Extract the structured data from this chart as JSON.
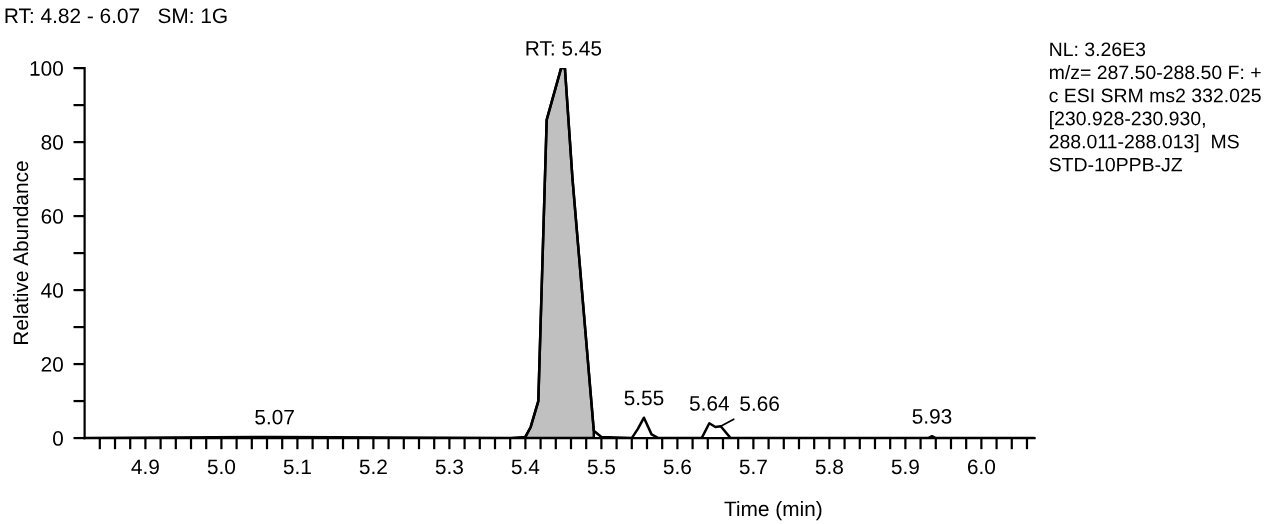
{
  "chart_data": {
    "type": "line",
    "title": "RT: 4.82 - 6.07   SM: 1G",
    "xlabel": "Time (min)",
    "ylabel": "Relative Abundance",
    "series": [
      {
        "color": "#000000",
        "x": [
          4.82,
          5.07,
          5.38,
          5.4,
          5.407,
          5.417,
          5.428,
          5.447,
          5.452,
          5.462,
          5.49,
          5.5,
          5.54,
          5.548,
          5.556,
          5.566,
          5.575,
          5.632,
          5.642,
          5.65,
          5.657,
          5.67,
          5.93,
          5.935,
          5.94,
          6.07
        ],
        "values": [
          0,
          0.3,
          0,
          0.3,
          3,
          10,
          86,
          100,
          100,
          70,
          2,
          0.3,
          0,
          2.5,
          5.5,
          1,
          0,
          0,
          4,
          3,
          3.2,
          0,
          0,
          0.5,
          0,
          0
        ]
      },
      {
        "type": "area",
        "color": "#c0c0c0",
        "x": [
          5.4,
          5.407,
          5.417,
          5.428,
          5.447,
          5.452,
          5.462,
          5.49
        ],
        "values": [
          0.3,
          3,
          10,
          86,
          100,
          100,
          70,
          2
        ]
      }
    ],
    "annotations": [
      {
        "text": "RT: 5.45",
        "x": 5.45,
        "y": 100
      },
      {
        "text": "5.07",
        "x": 5.07,
        "y": 0.3
      },
      {
        "text": "5.55",
        "x": 5.556,
        "y": 5.5
      },
      {
        "text": "5.64",
        "x": 5.642,
        "y": 4
      },
      {
        "text": "5.66",
        "x": 5.657,
        "y": 3.2
      },
      {
        "text": "5.93",
        "x": 5.935,
        "y": 0.5
      },
      "NL: 3.26E3\nm/z= 287.50-288.50 F: +\nc ESI SRM ms2 332.025\n[230.928-230.930,\n288.011-288.013]  MS\nSTD-10PPB-JZ"
    ],
    "xlim": [
      4.82,
      6.07
    ],
    "ylim": [
      0,
      100
    ],
    "xticks": [
      {
        "value": 4.84,
        "label": null
      },
      {
        "value": 4.86,
        "label": null
      },
      {
        "value": 4.88,
        "label": null
      },
      4.9,
      {
        "value": 4.92,
        "label": null
      },
      {
        "value": 4.94,
        "label": null
      },
      {
        "value": 4.96,
        "label": null
      },
      {
        "value": 4.98,
        "label": null
      },
      {
        "value": 5.0,
        "label": "5.0"
      },
      {
        "value": 5.02,
        "label": null
      },
      {
        "value": 5.04,
        "label": null
      },
      {
        "value": 5.06,
        "label": null
      },
      {
        "value": 5.08,
        "label": null
      },
      5.1,
      {
        "value": 5.12,
        "label": null
      },
      {
        "value": 5.14,
        "label": null
      },
      {
        "value": 5.16,
        "label": null
      },
      {
        "value": 5.18,
        "label": null
      },
      5.2,
      {
        "value": 5.22,
        "label": null
      },
      {
        "value": 5.24,
        "label": null
      },
      {
        "value": 5.26,
        "label": null
      },
      {
        "value": 5.28,
        "label": null
      },
      5.3,
      {
        "value": 5.32,
        "label": null
      },
      {
        "value": 5.34,
        "label": null
      },
      {
        "value": 5.36,
        "label": null
      },
      {
        "value": 5.38,
        "label": null
      },
      5.4,
      {
        "value": 5.42,
        "label": null
      },
      {
        "value": 5.44,
        "label": null
      },
      {
        "value": 5.46,
        "label": null
      },
      {
        "value": 5.48,
        "label": null
      },
      5.5,
      {
        "value": 5.52,
        "label": null
      },
      {
        "value": 5.54,
        "label": null
      },
      {
        "value": 5.56,
        "label": null
      },
      {
        "value": 5.58,
        "label": null
      },
      5.6,
      {
        "value": 5.62,
        "label": null
      },
      {
        "value": 5.64,
        "label": null
      },
      {
        "value": 5.66,
        "label": null
      },
      {
        "value": 5.68,
        "label": null
      },
      5.7,
      {
        "value": 5.72,
        "label": null
      },
      {
        "value": 5.74,
        "label": null
      },
      {
        "value": 5.76,
        "label": null
      },
      {
        "value": 5.78,
        "label": null
      },
      5.8,
      {
        "value": 5.82,
        "label": null
      },
      {
        "value": 5.84,
        "label": null
      },
      {
        "value": 5.86,
        "label": null
      },
      {
        "value": 5.88,
        "label": null
      },
      5.9,
      {
        "value": 5.92,
        "label": null
      },
      {
        "value": 5.94,
        "label": null
      },
      {
        "value": 5.96,
        "label": null
      },
      {
        "value": 5.98,
        "label": null
      },
      {
        "value": 6.0,
        "label": "6.0"
      },
      {
        "value": 6.02,
        "label": null
      },
      {
        "value": 6.04,
        "label": null
      },
      {
        "value": 6.06,
        "label": null
      }
    ],
    "yticks": [
      0,
      {
        "value": 10,
        "label": null
      },
      20,
      {
        "value": 30,
        "label": null
      },
      40,
      {
        "value": 50,
        "label": null
      },
      60,
      {
        "value": 70,
        "label": null
      },
      80,
      {
        "value": 90,
        "label": null
      },
      100
    ],
    "grid": false,
    "legend": false,
    "marker": "none",
    "line_style": "solid"
  }
}
